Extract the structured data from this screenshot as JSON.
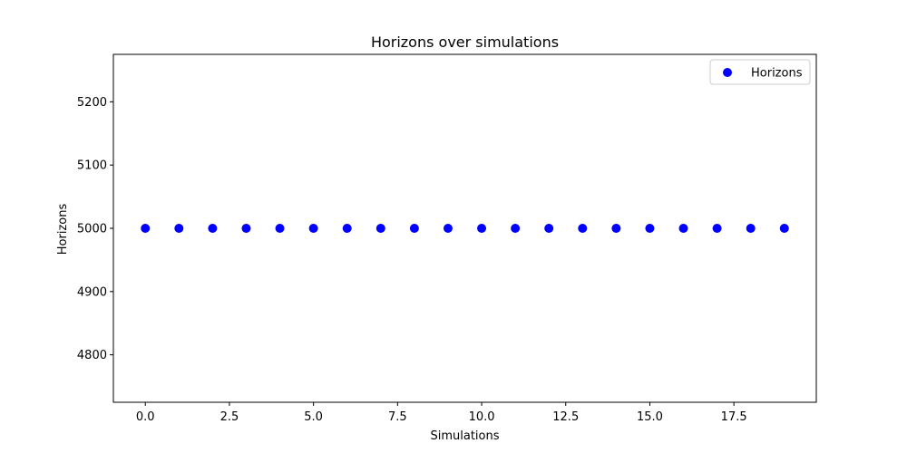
{
  "chart_data": {
    "type": "scatter",
    "title": "Horizons over simulations",
    "xlabel": "Simulations",
    "ylabel": "Horizons",
    "xlim": [
      -0.95,
      19.95
    ],
    "ylim": [
      4725,
      5275
    ],
    "xticks": [
      0.0,
      2.5,
      5.0,
      7.5,
      10.0,
      12.5,
      15.0,
      17.5
    ],
    "xtick_labels": [
      "0.0",
      "2.5",
      "5.0",
      "7.5",
      "10.0",
      "12.5",
      "15.0",
      "17.5"
    ],
    "yticks": [
      4800,
      4900,
      5000,
      5100,
      5200
    ],
    "ytick_labels": [
      "4800",
      "4900",
      "5000",
      "5100",
      "5200"
    ],
    "grid": false,
    "legend_position": "top-right",
    "series": [
      {
        "name": "Horizons",
        "color": "#0000ff",
        "marker": "circle",
        "x": [
          0,
          1,
          2,
          3,
          4,
          5,
          6,
          7,
          8,
          9,
          10,
          11,
          12,
          13,
          14,
          15,
          16,
          17,
          18,
          19
        ],
        "y": [
          5000,
          5000,
          5000,
          5000,
          5000,
          5000,
          5000,
          5000,
          5000,
          5000,
          5000,
          5000,
          5000,
          5000,
          5000,
          5000,
          5000,
          5000,
          5000,
          5000
        ]
      }
    ]
  }
}
